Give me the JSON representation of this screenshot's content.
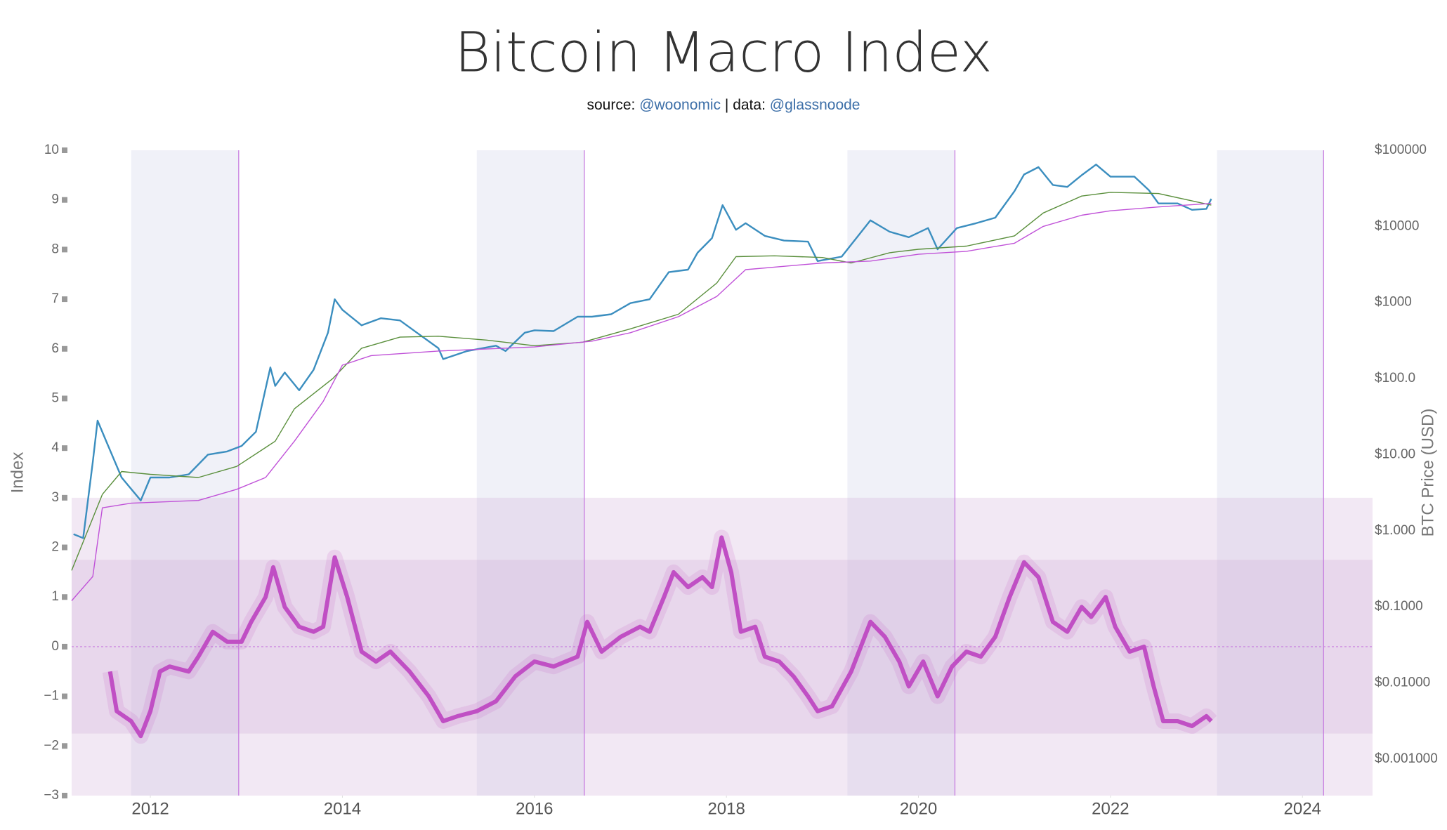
{
  "chart_data": {
    "type": "line",
    "title": "Bitcoin Macro Index",
    "subtitle": [
      "source:",
      "@woonomic",
      "| data:",
      "@glassnoode"
    ],
    "y_label": "Index",
    "y2_label": "BTC Price (USD)",
    "xlim": [
      2011.18,
      2024.73
    ],
    "xticks": [
      2012,
      2014,
      2016,
      2018,
      2020,
      2022,
      2024
    ],
    "ylim": [
      -3,
      10
    ],
    "yticks": [
      {
        "value": -3,
        "label": "−3"
      },
      {
        "value": -2,
        "label": "−2"
      },
      {
        "value": -1,
        "label": "−1"
      },
      0,
      1,
      2,
      3,
      4,
      5,
      6,
      7,
      8,
      9,
      10
    ],
    "y2lim": [
      0.00033,
      100000
    ],
    "y2log": true,
    "y2ticks": [
      {
        "value": 0.001,
        "label": "$0.001000"
      },
      {
        "value": 0.01,
        "label": "$0.01000"
      },
      {
        "value": 0.1,
        "label": "$0.1000"
      },
      {
        "value": 1,
        "label": "$1.000"
      },
      {
        "value": 10,
        "label": "$10.00"
      },
      {
        "value": 100,
        "label": "$100.0"
      },
      {
        "value": 1000,
        "label": "$1000"
      },
      {
        "value": 10000,
        "label": "$10000"
      },
      {
        "value": 100000,
        "label": "$100000"
      }
    ],
    "shaded_periods": [
      [
        2011.8,
        2012.92
      ],
      [
        2015.4,
        2016.52
      ],
      [
        2019.26,
        2020.38
      ],
      [
        2023.11,
        2024.22
      ]
    ],
    "halvings": [
      2012.92,
      2016.52,
      2020.38,
      2024.22
    ],
    "index_bands": [
      [
        -3,
        3
      ],
      [
        -1.75,
        1.75
      ]
    ],
    "reference_line": 0,
    "series": [
      {
        "color": "#3b8ebf",
        "axis": "y2",
        "x": [
          2011.2,
          2011.3,
          2011.4,
          2011.45,
          2011.55,
          2011.7,
          2011.9,
          2012.0,
          2012.2,
          2012.4,
          2012.6,
          2012.8,
          2012.95,
          2013.1,
          2013.25,
          2013.3,
          2013.4,
          2013.55,
          2013.7,
          2013.85,
          2013.92,
          2014.0,
          2014.2,
          2014.4,
          2014.6,
          2014.8,
          2015.0,
          2015.05,
          2015.3,
          2015.6,
          2015.7,
          2015.9,
          2016.0,
          2016.2,
          2016.45,
          2016.6,
          2016.8,
          2017.0,
          2017.2,
          2017.4,
          2017.6,
          2017.7,
          2017.85,
          2017.96,
          2018.1,
          2018.2,
          2018.4,
          2018.6,
          2018.85,
          2018.95,
          2019.2,
          2019.5,
          2019.7,
          2019.9,
          2020.1,
          2020.2,
          2020.4,
          2020.6,
          2020.8,
          2021.0,
          2021.1,
          2021.25,
          2021.4,
          2021.55,
          2021.7,
          2021.85,
          2022.0,
          2022.25,
          2022.4,
          2022.5,
          2022.7,
          2022.85,
          2023.0,
          2023.05
        ],
        "values": [
          0.9,
          0.8,
          8,
          28,
          14,
          5,
          2.5,
          5,
          5,
          5.5,
          10,
          11,
          13,
          20,
          140,
          80,
          120,
          70,
          130,
          400,
          1100,
          800,
          500,
          620,
          580,
          380,
          250,
          180,
          230,
          270,
          230,
          400,
          430,
          420,
          650,
          650,
          700,
          980,
          1100,
          2500,
          2700,
          4500,
          7000,
          19000,
          9000,
          11000,
          7500,
          6500,
          6300,
          3500,
          4000,
          12000,
          8500,
          7200,
          9500,
          5000,
          9500,
          11000,
          13000,
          29000,
          48000,
          60000,
          35000,
          33000,
          47000,
          65000,
          45000,
          45000,
          30000,
          20000,
          20000,
          16500,
          17000,
          23000
        ]
      },
      {
        "color": "#5a8f3c",
        "axis": "y2",
        "x": [
          2011.18,
          2011.5,
          2011.7,
          2012.0,
          2012.5,
          2012.9,
          2013.3,
          2013.5,
          2013.9,
          2014.2,
          2014.6,
          2015.0,
          2015.5,
          2016.0,
          2016.5,
          2017.0,
          2017.5,
          2017.9,
          2018.1,
          2018.5,
          2019.0,
          2019.3,
          2019.7,
          2020.0,
          2020.5,
          2021.0,
          2021.3,
          2021.7,
          2022.0,
          2022.5,
          2023.05
        ],
        "values": [
          0.3,
          3,
          6,
          5.5,
          5,
          7,
          15,
          40,
          100,
          250,
          350,
          360,
          320,
          270,
          300,
          450,
          700,
          1800,
          4000,
          4100,
          3900,
          3300,
          4500,
          5000,
          5500,
          7500,
          15000,
          25000,
          28000,
          27000,
          19000
        ]
      },
      {
        "color": "#c052d8",
        "axis": "y2",
        "x": [
          2011.18,
          2011.4,
          2011.5,
          2011.8,
          2012.5,
          2012.9,
          2013.2,
          2013.5,
          2013.8,
          2014.0,
          2014.3,
          2015.0,
          2016.0,
          2016.6,
          2017.0,
          2017.5,
          2017.9,
          2018.2,
          2019.0,
          2019.5,
          2020.0,
          2020.5,
          2021.0,
          2021.3,
          2021.7,
          2022.0,
          2022.5,
          2023.05
        ],
        "values": [
          0.12,
          0.25,
          2,
          2.3,
          2.5,
          3.5,
          5,
          15,
          50,
          150,
          200,
          230,
          260,
          310,
          400,
          650,
          1200,
          2700,
          3300,
          3500,
          4300,
          4700,
          6000,
          10000,
          14000,
          16000,
          18000,
          20000
        ]
      },
      {
        "color": "#c04fc4",
        "axis": "y",
        "x": [
          2011.58,
          2011.65,
          2011.8,
          2011.9,
          2012.0,
          2012.1,
          2012.2,
          2012.4,
          2012.5,
          2012.65,
          2012.8,
          2012.95,
          2013.05,
          2013.2,
          2013.28,
          2013.4,
          2013.55,
          2013.7,
          2013.8,
          2013.92,
          2014.05,
          2014.2,
          2014.35,
          2014.5,
          2014.7,
          2014.9,
          2015.05,
          2015.2,
          2015.4,
          2015.6,
          2015.8,
          2016.0,
          2016.2,
          2016.45,
          2016.55,
          2016.7,
          2016.9,
          2017.1,
          2017.2,
          2017.35,
          2017.45,
          2017.6,
          2017.75,
          2017.85,
          2017.95,
          2018.05,
          2018.15,
          2018.3,
          2018.4,
          2018.55,
          2018.7,
          2018.85,
          2018.95,
          2019.1,
          2019.3,
          2019.5,
          2019.65,
          2019.8,
          2019.9,
          2020.05,
          2020.2,
          2020.35,
          2020.5,
          2020.65,
          2020.8,
          2020.95,
          2021.1,
          2021.25,
          2021.4,
          2021.55,
          2021.7,
          2021.8,
          2021.95,
          2022.05,
          2022.2,
          2022.35,
          2022.45,
          2022.55,
          2022.7,
          2022.85,
          2023.0,
          2023.05
        ],
        "values": [
          -0.5,
          -1.3,
          -1.5,
          -1.8,
          -1.3,
          -0.5,
          -0.4,
          -0.5,
          -0.2,
          0.3,
          0.1,
          0.1,
          0.5,
          1.0,
          1.6,
          0.8,
          0.4,
          0.3,
          0.4,
          1.8,
          1.0,
          -0.1,
          -0.3,
          -0.1,
          -0.5,
          -1.0,
          -1.5,
          -1.4,
          -1.3,
          -1.1,
          -0.6,
          -0.3,
          -0.4,
          -0.2,
          0.5,
          -0.1,
          0.2,
          0.4,
          0.3,
          1.0,
          1.5,
          1.2,
          1.4,
          1.2,
          2.2,
          1.5,
          0.3,
          0.4,
          -0.2,
          -0.3,
          -0.6,
          -1.0,
          -1.3,
          -1.2,
          -0.5,
          0.5,
          0.2,
          -0.3,
          -0.8,
          -0.3,
          -1.0,
          -0.4,
          -0.1,
          -0.2,
          0.2,
          1.0,
          1.7,
          1.4,
          0.5,
          0.3,
          0.8,
          0.6,
          1.0,
          0.4,
          -0.1,
          0.0,
          -0.8,
          -1.5,
          -1.5,
          -1.6,
          -1.4,
          -1.5
        ]
      }
    ]
  }
}
